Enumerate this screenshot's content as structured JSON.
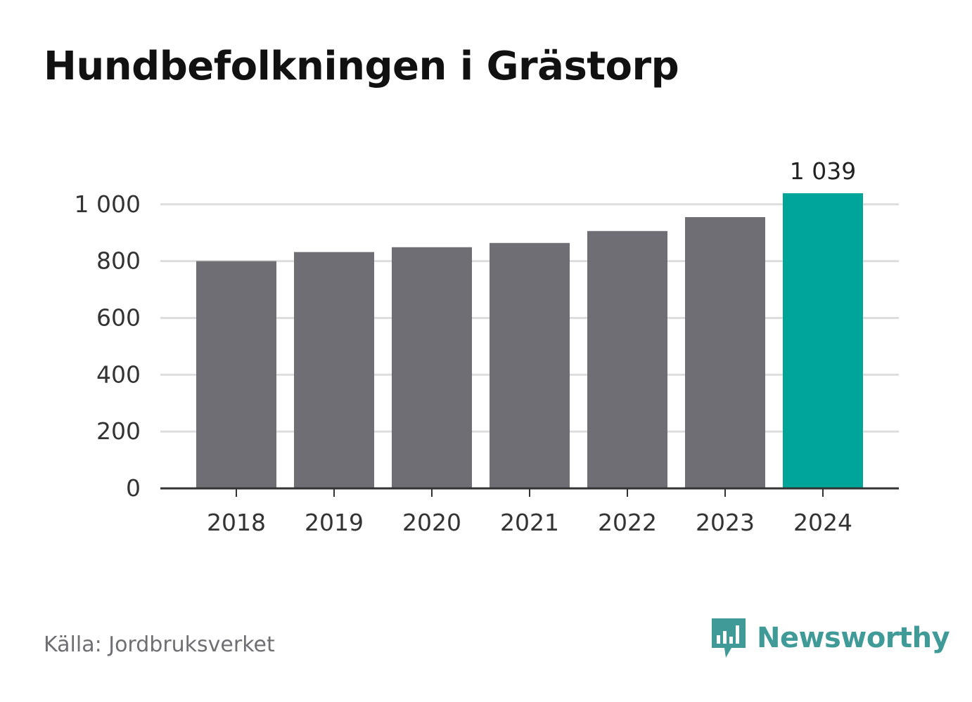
{
  "title": "Hundbefolkningen i Grästorp",
  "source": "Källa: Jordbruksverket",
  "brand": {
    "name": "Newsworthy",
    "icon": "newsworthy-logo-icon"
  },
  "colors": {
    "bar": "#6f6e74",
    "highlight": "#00a59a",
    "grid": "#dddddd",
    "axis": "#333333",
    "brand": "#3f9a98"
  },
  "chart_data": {
    "type": "bar",
    "categories": [
      "2018",
      "2019",
      "2020",
      "2021",
      "2022",
      "2023",
      "2024"
    ],
    "values": [
      800,
      832,
      849,
      864,
      906,
      955,
      1039
    ],
    "highlight_index": 6,
    "data_labels": [
      {
        "index": 6,
        "text": "1 039"
      }
    ],
    "yticks": [
      0,
      200,
      400,
      600,
      800,
      1000
    ],
    "ytick_labels": [
      "0",
      "200",
      "400",
      "600",
      "800",
      "1 000"
    ],
    "ylim": [
      0,
      1039
    ],
    "grid": true,
    "xlabel": "",
    "ylabel": ""
  }
}
